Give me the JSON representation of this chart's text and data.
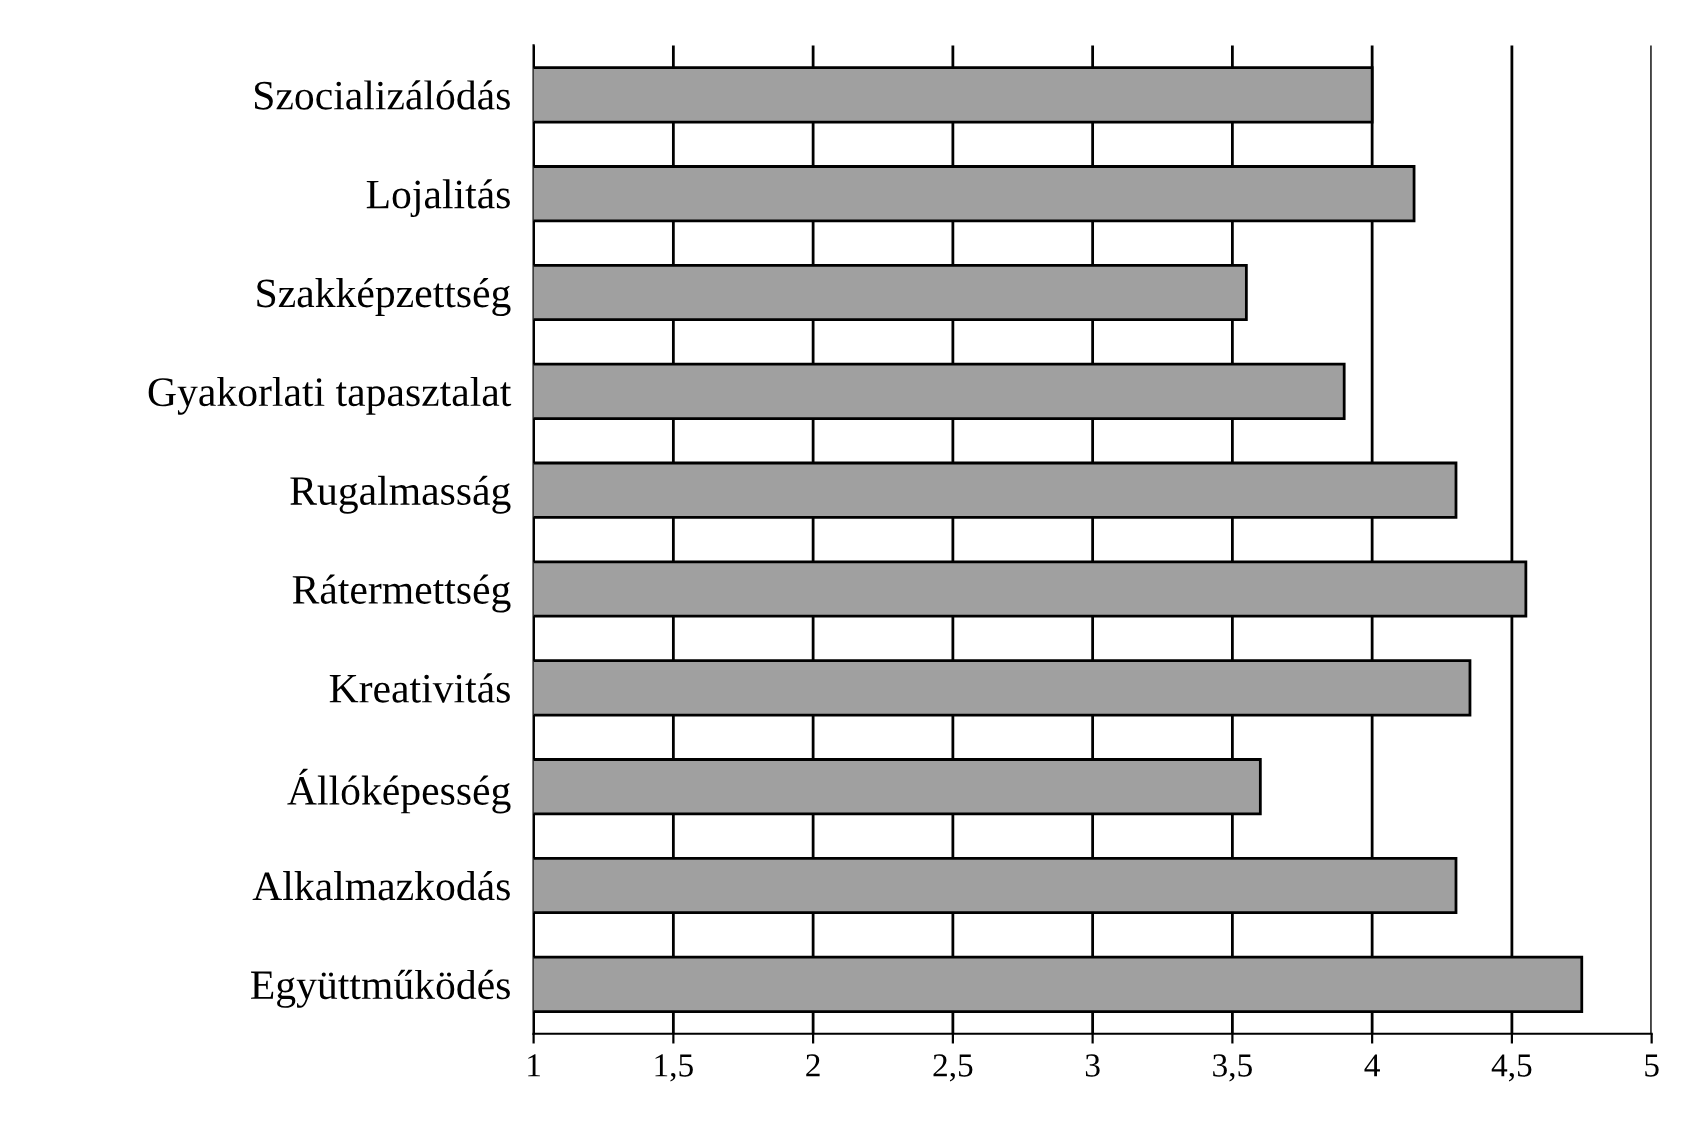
{
  "chart_data": {
    "type": "bar",
    "orientation": "horizontal",
    "categories": [
      "Szocializálódás",
      "Lojalitás",
      "Szakképzettség",
      "Gyakorlati tapasztalat",
      "Rugalmasság",
      "Rátermettség",
      "Kreativitás",
      "Állóképesség",
      "Alkalmazkodás",
      "Együttműködés"
    ],
    "values": [
      4.0,
      4.15,
      3.55,
      3.9,
      4.3,
      4.55,
      4.35,
      3.6,
      4.3,
      4.75
    ],
    "color": "#a0a0a0",
    "xlim": [
      1,
      5
    ],
    "xticks": [
      1,
      {
        "value": 1.5,
        "label": "1,5"
      },
      2,
      {
        "value": 2.5,
        "label": "2,5"
      },
      3,
      {
        "value": 3.5,
        "label": "3,5"
      },
      4,
      {
        "value": 4.5,
        "label": "4,5"
      },
      5
    ],
    "grid": "x"
  }
}
